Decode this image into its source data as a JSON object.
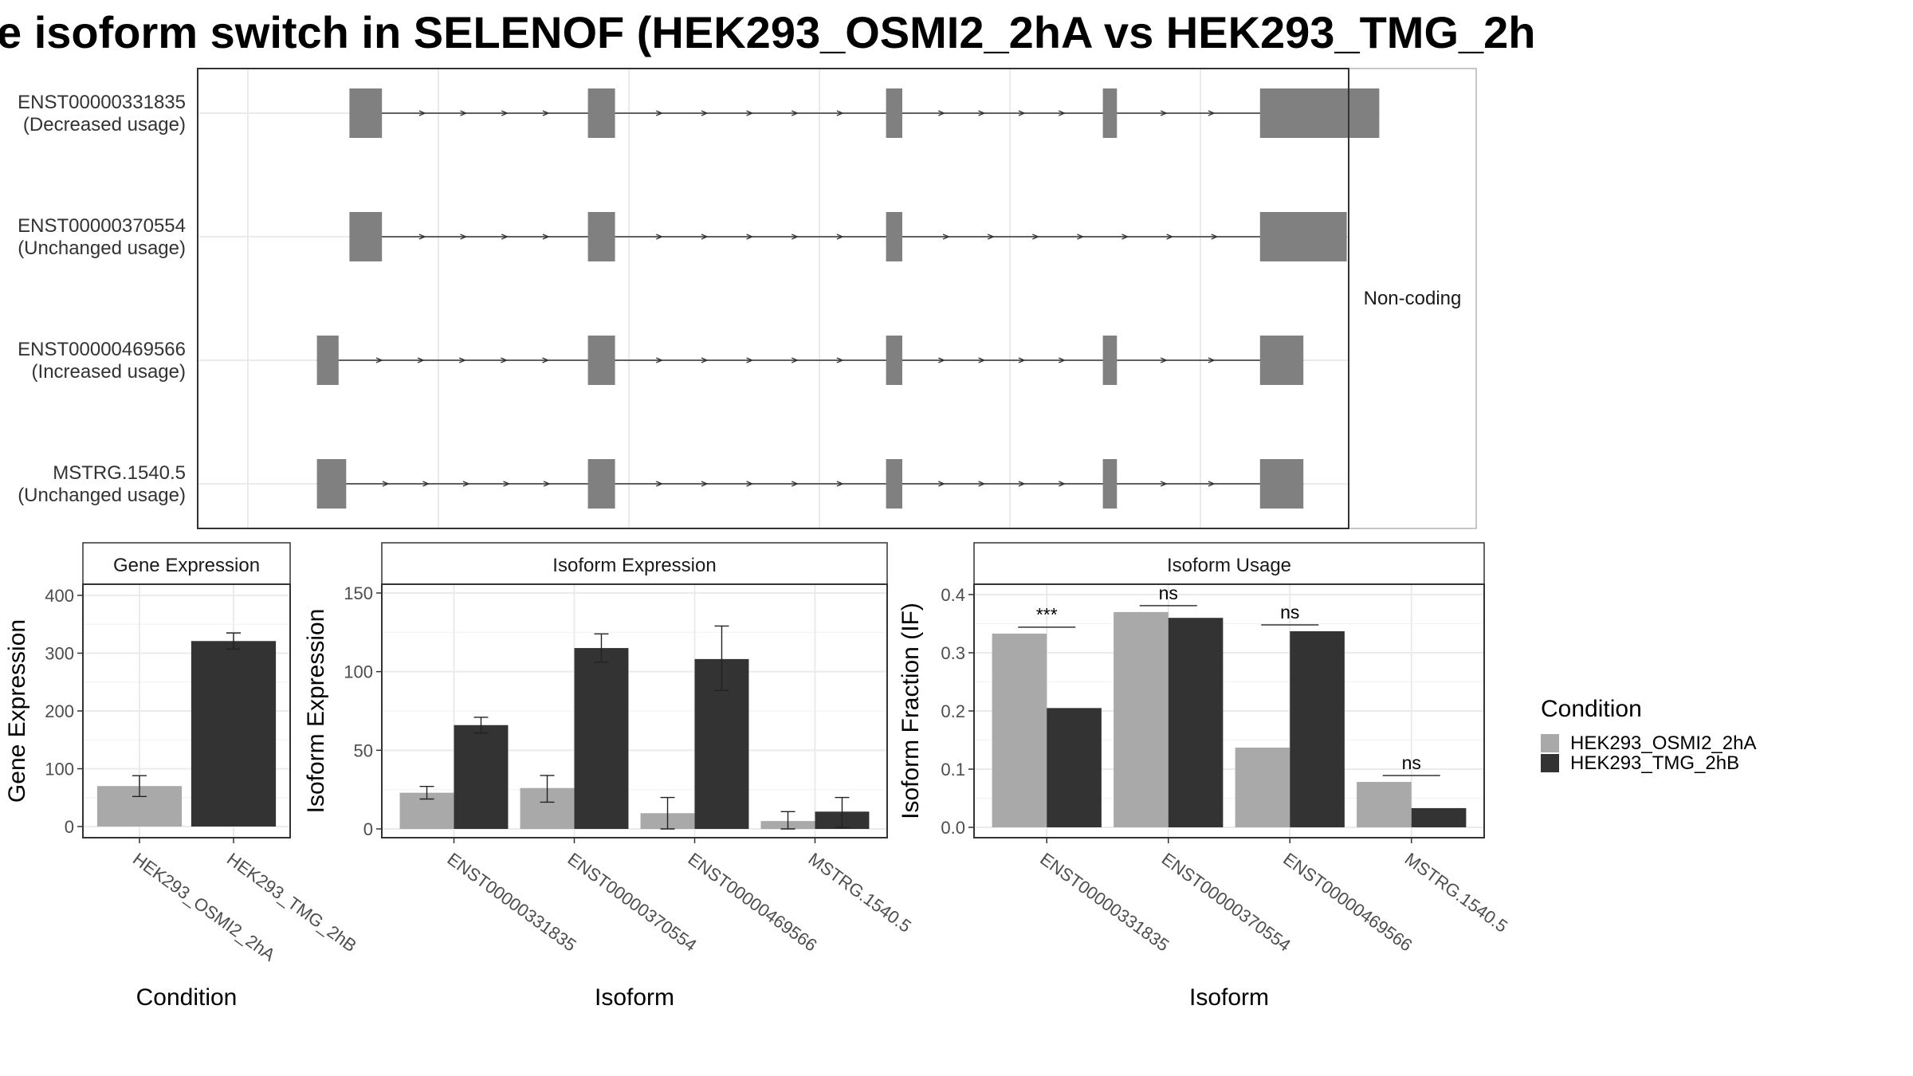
{
  "title": "e isoform switch in SELENOF (HEK293_OSMI2_2hA vs HEK293_TMG_2h",
  "colors": {
    "osmi": "#a9a9a9",
    "tmg": "#333333",
    "exon": "#808080",
    "grid": "#ebebeb",
    "frame": "#333333"
  },
  "chart_data": [
    {
      "type": "gene-structure",
      "facet_label": "Non-coding",
      "isoforms": [
        {
          "id": "ENST00000331835",
          "usage": "(Decreased usage)",
          "exons": [
            [
              0.14,
              0.17
            ],
            [
              0.36,
              0.385
            ],
            [
              0.635,
              0.65
            ],
            [
              0.835,
              0.848
            ],
            [
              0.98,
              1.09
            ]
          ]
        },
        {
          "id": "ENST00000370554",
          "usage": "(Unchanged usage)",
          "exons": [
            [
              0.14,
              0.17
            ],
            [
              0.36,
              0.385
            ],
            [
              0.635,
              0.65
            ],
            [
              0.98,
              1.06
            ]
          ]
        },
        {
          "id": "ENST00000469566",
          "usage": "(Increased usage)",
          "exons": [
            [
              0.11,
              0.13
            ],
            [
              0.36,
              0.385
            ],
            [
              0.635,
              0.65
            ],
            [
              0.835,
              0.848
            ],
            [
              0.98,
              1.02
            ]
          ]
        },
        {
          "id": "MSTRG.1540.5",
          "usage": "(Unchanged usage)",
          "exons": [
            [
              0.11,
              0.137
            ],
            [
              0.36,
              0.385
            ],
            [
              0.635,
              0.65
            ],
            [
              0.835,
              0.848
            ],
            [
              0.98,
              1.02
            ]
          ]
        }
      ]
    },
    {
      "type": "bar",
      "facet_label": "Gene Expression",
      "xlabel": "Condition",
      "ylabel": "Gene Expression",
      "ylim": [
        0,
        400
      ],
      "yticks": [
        "0",
        "100",
        "200",
        "300",
        "400"
      ],
      "categories": [
        "HEK293_OSMI2_2hA",
        "HEK293_TMG_2hB"
      ],
      "values": [
        70,
        321
      ],
      "errors": [
        [
          52,
          88
        ],
        [
          307,
          335
        ]
      ]
    },
    {
      "type": "bar",
      "facet_label": "Isoform Expression",
      "xlabel": "Isoform",
      "ylabel": "Isoform Expression",
      "ylim": [
        0,
        150
      ],
      "yticks": [
        "0",
        "50",
        "100",
        "150"
      ],
      "categories": [
        "ENST00000331835",
        "ENST00000370554",
        "ENST00000469566",
        "MSTRG.1540.5"
      ],
      "series": [
        {
          "values": [
            23,
            26,
            10,
            5
          ],
          "errors": [
            [
              19,
              27
            ],
            [
              17,
              34
            ],
            [
              0,
              20
            ],
            [
              0,
              11
            ]
          ]
        },
        {
          "values": [
            66,
            115,
            108,
            11
          ],
          "errors": [
            [
              61,
              71
            ],
            [
              106,
              124
            ],
            [
              88,
              129
            ],
            [
              1,
              20
            ]
          ]
        }
      ]
    },
    {
      "type": "bar",
      "facet_label": "Isoform Usage",
      "xlabel": "Isoform",
      "ylabel": "Isoform Fraction (IF)",
      "ylim": [
        0,
        0.4
      ],
      "yticks": [
        "0.0",
        "0.1",
        "0.2",
        "0.3",
        "0.4"
      ],
      "categories": [
        "ENST00000331835",
        "ENST00000370554",
        "ENST00000469566",
        "MSTRG.1540.5"
      ],
      "series": [
        {
          "values": [
            0.333,
            0.37,
            0.137,
            0.078
          ]
        },
        {
          "values": [
            0.205,
            0.36,
            0.337,
            0.033
          ]
        }
      ],
      "significance": [
        "***",
        "ns",
        "ns",
        "ns"
      ]
    }
  ],
  "legend": {
    "title": "Condition",
    "items": [
      "HEK293_OSMI2_2hA",
      "HEK293_TMG_2hB"
    ]
  }
}
